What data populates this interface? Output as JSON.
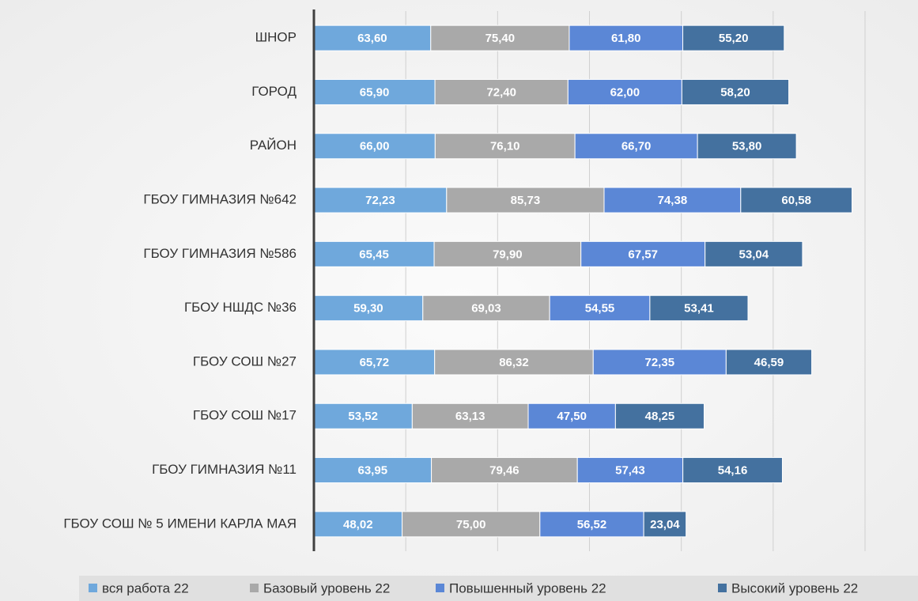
{
  "chart_data": {
    "type": "stacked-barh",
    "categories": [
      "ШНОР",
      "ГОРОД",
      "РАЙОН",
      "ГБОУ ГИМНАЗИЯ №642",
      "ГБОУ ГИМНАЗИЯ №586",
      "ГБОУ НШДС №36",
      "ГБОУ СОШ №27",
      "ГБОУ СОШ №17",
      "ГБОУ ГИМНАЗИЯ №11",
      "ГБОУ СОШ № 5 ИМЕНИ КАРЛА МАЯ"
    ],
    "series": [
      {
        "name": "вся работа 22",
        "color": "#6fa8dc",
        "values": [
          63.6,
          65.9,
          66.0,
          72.23,
          65.45,
          59.3,
          65.72,
          53.52,
          63.95,
          48.02
        ],
        "value_labels": [
          "63,60",
          "65,90",
          "66,00",
          "72,23",
          "65,45",
          "59,30",
          "65,72",
          "53,52",
          "63,95",
          "48,02"
        ]
      },
      {
        "name": "Базовый уровень 22",
        "color": "#a9a9a9",
        "values": [
          75.4,
          72.4,
          76.1,
          85.73,
          79.9,
          69.03,
          86.32,
          63.13,
          79.46,
          75.0
        ],
        "value_labels": [
          "75,40",
          "72,40",
          "76,10",
          "85,73",
          "79,90",
          "69,03",
          "86,32",
          "63,13",
          "79,46",
          "75,00"
        ]
      },
      {
        "name": "Повышенный уровень 22",
        "color": "#5b87d6",
        "values": [
          61.8,
          62.0,
          66.7,
          74.38,
          67.57,
          54.55,
          72.35,
          47.5,
          57.43,
          56.52
        ],
        "value_labels": [
          "61,80",
          "62,00",
          "66,70",
          "74,38",
          "67,57",
          "54,55",
          "72,35",
          "47,50",
          "57,43",
          "56,52"
        ]
      },
      {
        "name": "Высокий уровень 22",
        "color": "#44719f",
        "values": [
          55.2,
          58.2,
          53.8,
          60.58,
          53.04,
          53.41,
          46.59,
          48.25,
          54.16,
          23.04
        ],
        "value_labels": [
          "55,20",
          "58,20",
          "53,80",
          "60,58",
          "53,04",
          "53,41",
          "46,59",
          "48,25",
          "54,16",
          "23,04"
        ]
      }
    ],
    "xlim": [
      0,
      300
    ],
    "xticks": [
      0,
      50,
      100,
      150,
      200,
      250,
      300
    ],
    "grid": true,
    "legend": "bottom"
  }
}
